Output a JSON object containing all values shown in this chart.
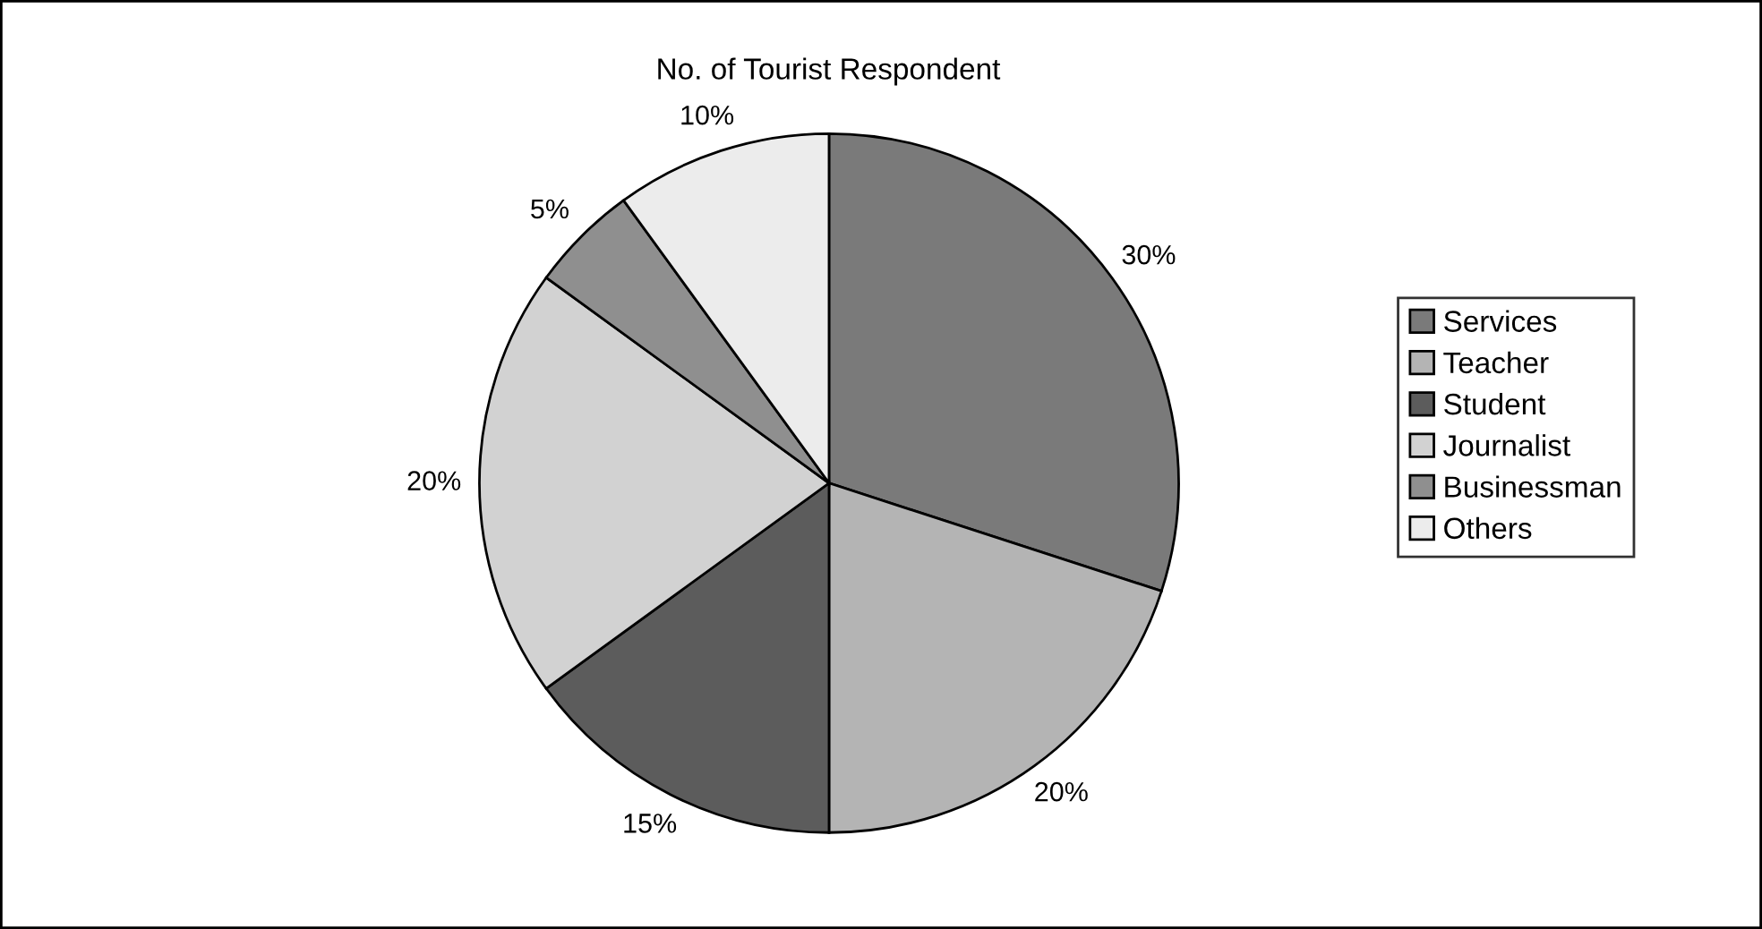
{
  "chart_data": {
    "type": "pie",
    "title": "No. of Tourist Respondent",
    "categories": [
      "Services",
      "Teacher",
      "Student",
      "Journalist",
      "Businessman",
      "Others"
    ],
    "values": [
      30,
      20,
      15,
      20,
      5,
      10
    ],
    "colors": [
      "#7a7a7a",
      "#b4b4b4",
      "#5c5c5c",
      "#d2d2d2",
      "#8f8f8f",
      "#ececec"
    ],
    "value_labels": [
      "30%",
      "20%",
      "15%",
      "20%",
      "5%",
      "10%"
    ],
    "legend": "right"
  }
}
